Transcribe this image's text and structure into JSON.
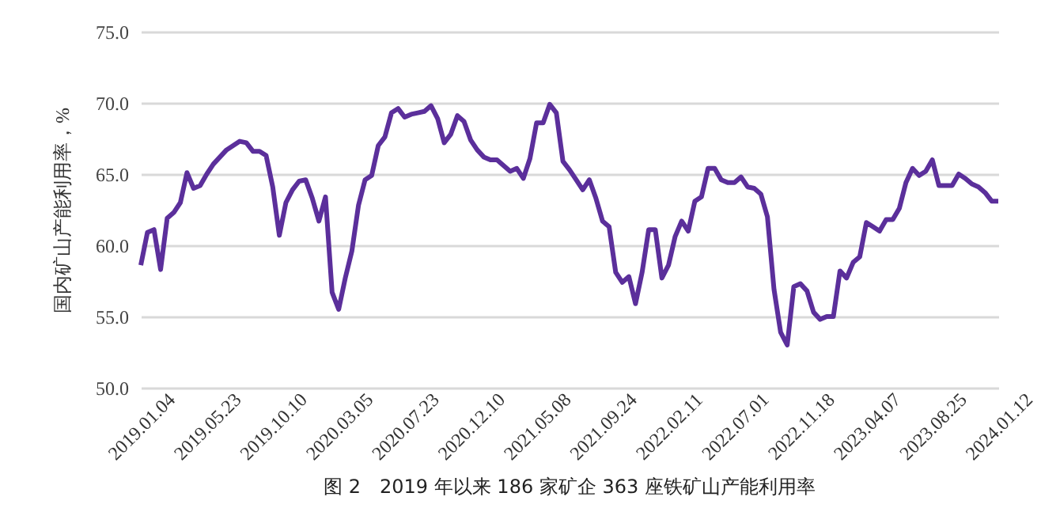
{
  "chart_data": {
    "type": "line",
    "title": "图 2　2019 年以来 186 家矿企 363 座铁矿山产能利用率",
    "ylabel": "国内矿山产能利用率，%",
    "categories": [
      "2019.01.04",
      null,
      null,
      null,
      null,
      null,
      null,
      null,
      null,
      null,
      "2019.05.23",
      null,
      null,
      null,
      null,
      null,
      null,
      null,
      null,
      null,
      "2019.10.10",
      null,
      null,
      null,
      null,
      null,
      null,
      null,
      null,
      null,
      "2020.03.05",
      null,
      null,
      null,
      null,
      null,
      null,
      null,
      null,
      null,
      "2020.07.23",
      null,
      null,
      null,
      null,
      null,
      null,
      null,
      null,
      null,
      "2020.12.10",
      null,
      null,
      null,
      null,
      null,
      null,
      null,
      null,
      null,
      "2021.05.08",
      null,
      null,
      null,
      null,
      null,
      null,
      null,
      null,
      null,
      "2021.09.24",
      null,
      null,
      null,
      null,
      null,
      null,
      null,
      null,
      null,
      "2022.02.11",
      null,
      null,
      null,
      null,
      null,
      null,
      null,
      null,
      null,
      "2022.07.01",
      null,
      null,
      null,
      null,
      null,
      null,
      null,
      null,
      null,
      "2022.11.18",
      null,
      null,
      null,
      null,
      null,
      null,
      null,
      null,
      null,
      "2023.04.07",
      null,
      null,
      null,
      null,
      null,
      null,
      null,
      null,
      null,
      "2023.08.25",
      null,
      null,
      null,
      null,
      null,
      null,
      null,
      null,
      null,
      "2024.01.12"
    ],
    "series": [
      {
        "color": "#5b2f9b",
        "values": [
          58.6,
          60.9,
          61.1,
          58.3,
          61.9,
          62.3,
          63.0,
          65.1,
          64.0,
          64.2,
          65.0,
          65.7,
          66.2,
          66.7,
          67.0,
          67.3,
          67.2,
          66.6,
          66.6,
          66.3,
          64.1,
          60.7,
          63.0,
          63.9,
          64.5,
          64.6,
          63.3,
          61.7,
          63.4,
          56.7,
          55.5,
          57.7,
          59.6,
          62.8,
          64.6,
          64.9,
          67.0,
          67.6,
          69.3,
          69.6,
          69.0,
          69.2,
          69.3,
          69.4,
          69.8,
          68.9,
          67.2,
          67.8,
          69.1,
          68.7,
          67.4,
          66.7,
          66.2,
          66.0,
          66.0,
          65.6,
          65.2,
          65.4,
          64.7,
          66.1,
          68.6,
          68.6,
          69.9,
          69.3,
          65.9,
          65.3,
          64.6,
          63.9,
          64.6,
          63.3,
          61.7,
          61.3,
          58.1,
          57.4,
          57.8,
          55.9,
          58.1,
          61.1,
          61.1,
          57.7,
          58.6,
          60.6,
          61.7,
          61.0,
          63.1,
          63.4,
          65.4,
          65.4,
          64.6,
          64.4,
          64.4,
          64.8,
          64.1,
          64.0,
          63.6,
          62.0,
          56.9,
          53.9,
          53.0,
          57.1,
          57.3,
          56.8,
          55.3,
          54.8,
          55.0,
          55.0,
          58.2,
          57.7,
          58.8,
          59.2,
          61.6,
          61.3,
          61.0,
          61.8,
          61.8,
          62.6,
          64.4,
          65.4,
          64.9,
          65.2,
          66.0,
          64.2,
          64.2,
          64.2,
          65.0,
          64.7,
          64.3,
          64.1,
          63.7,
          63.1,
          63.1
        ]
      }
    ],
    "ylim": [
      50,
      75
    ],
    "yticks": [
      {
        "value": 50,
        "label": "50.0"
      },
      {
        "value": 55,
        "label": "55.0"
      },
      {
        "value": 60,
        "label": "60.0"
      },
      {
        "value": 65,
        "label": "65.0"
      },
      {
        "value": 70,
        "label": "70.0"
      },
      {
        "value": 75,
        "label": "75.0"
      }
    ],
    "grid": "y",
    "line_style": "solid"
  }
}
